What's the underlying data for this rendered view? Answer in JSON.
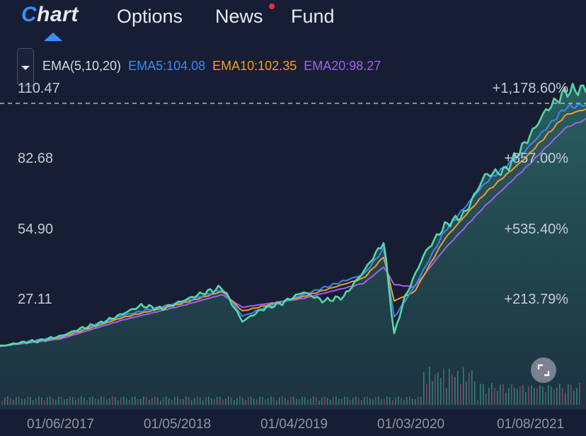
{
  "nav": {
    "tabs": [
      {
        "label_mark": "C",
        "label_rest": "hart",
        "label": "Chart",
        "active": true
      },
      {
        "label": "Options"
      },
      {
        "label": "News",
        "has_notification": true
      },
      {
        "label": "Fund"
      }
    ]
  },
  "indicator": {
    "name": "EMA(5,10,20)",
    "ema5": "EMA5:104.08",
    "ema10": "EMA10:102.35",
    "ema20": "EMA20:98.27",
    "colors": {
      "ema5": "#3f87f0",
      "ema10": "#f29c2b",
      "ema20": "#a25ff0",
      "price": "#55d6a8"
    }
  },
  "chart_data": {
    "type": "line",
    "title": "",
    "y_ticks": [
      "110.47",
      "82.68",
      "54.90",
      "27.11"
    ],
    "percent_ticks": [
      "+1,178.60%",
      "+857.00%",
      "+535.40%",
      "+213.79%"
    ],
    "x_ticks": [
      "01/06/2017",
      "01/05/2018",
      "01/04/2019",
      "01/03/2020",
      "01/08/2021"
    ],
    "ylim": [
      0,
      115
    ],
    "x_range": [
      "2016-12",
      "2021-10"
    ],
    "series": [
      {
        "name": "Price",
        "x": [
          "2016-12",
          "2017-02",
          "2017-04",
          "2017-06",
          "2017-08",
          "2017-10",
          "2017-12",
          "2018-02",
          "2018-04",
          "2018-06",
          "2018-08",
          "2018-10",
          "2018-12",
          "2019-02",
          "2019-04",
          "2019-06",
          "2019-08",
          "2019-10",
          "2019-12",
          "2020-02",
          "2020-03",
          "2020-04",
          "2020-06",
          "2020-08",
          "2020-10",
          "2020-12",
          "2021-02",
          "2021-04",
          "2021-06",
          "2021-08",
          "2021-10"
        ],
        "values": [
          8.6,
          10.0,
          10.8,
          12.6,
          15.6,
          17.7,
          21.2,
          24.7,
          23.3,
          26.4,
          29.5,
          31.9,
          18.4,
          23.4,
          25.8,
          30.1,
          26.5,
          28.1,
          38.2,
          50.0,
          13.0,
          27.1,
          45.1,
          56.2,
          61.0,
          76.2,
          78.1,
          89.0,
          101.6,
          109.3,
          110.5
        ]
      },
      {
        "name": "EMA5",
        "x": [
          "2016-12",
          "2017-06",
          "2017-12",
          "2018-06",
          "2018-10",
          "2018-12",
          "2019-06",
          "2019-12",
          "2020-02",
          "2020-03",
          "2020-05",
          "2020-08",
          "2020-12",
          "2021-04",
          "2021-08",
          "2021-10"
        ],
        "values": [
          8.6,
          12.4,
          20.6,
          26.0,
          31.0,
          20.5,
          29.0,
          37.0,
          47.0,
          20.0,
          32.0,
          54.0,
          73.0,
          86.0,
          103.0,
          104.08
        ]
      },
      {
        "name": "EMA10",
        "x": [
          "2016-12",
          "2017-06",
          "2017-12",
          "2018-06",
          "2018-10",
          "2018-12",
          "2019-06",
          "2019-12",
          "2020-02",
          "2020-03",
          "2020-05",
          "2020-08",
          "2020-12",
          "2021-04",
          "2021-08",
          "2021-10"
        ],
        "values": [
          8.6,
          12.0,
          19.8,
          25.5,
          30.3,
          22.5,
          28.2,
          35.5,
          44.0,
          26.5,
          30.0,
          51.0,
          69.0,
          83.0,
          100.0,
          102.35
        ]
      },
      {
        "name": "EMA20",
        "x": [
          "2016-12",
          "2017-06",
          "2017-12",
          "2018-06",
          "2018-10",
          "2018-12",
          "2019-06",
          "2019-12",
          "2020-02",
          "2020-03",
          "2020-05",
          "2020-08",
          "2020-12",
          "2021-04",
          "2021-08",
          "2021-10"
        ],
        "values": [
          8.6,
          11.5,
          18.8,
          24.6,
          29.0,
          24.0,
          27.5,
          33.5,
          40.0,
          33.0,
          32.0,
          47.0,
          64.0,
          79.0,
          95.0,
          98.27
        ]
      }
    ],
    "grid": false,
    "legend": "top-left"
  }
}
